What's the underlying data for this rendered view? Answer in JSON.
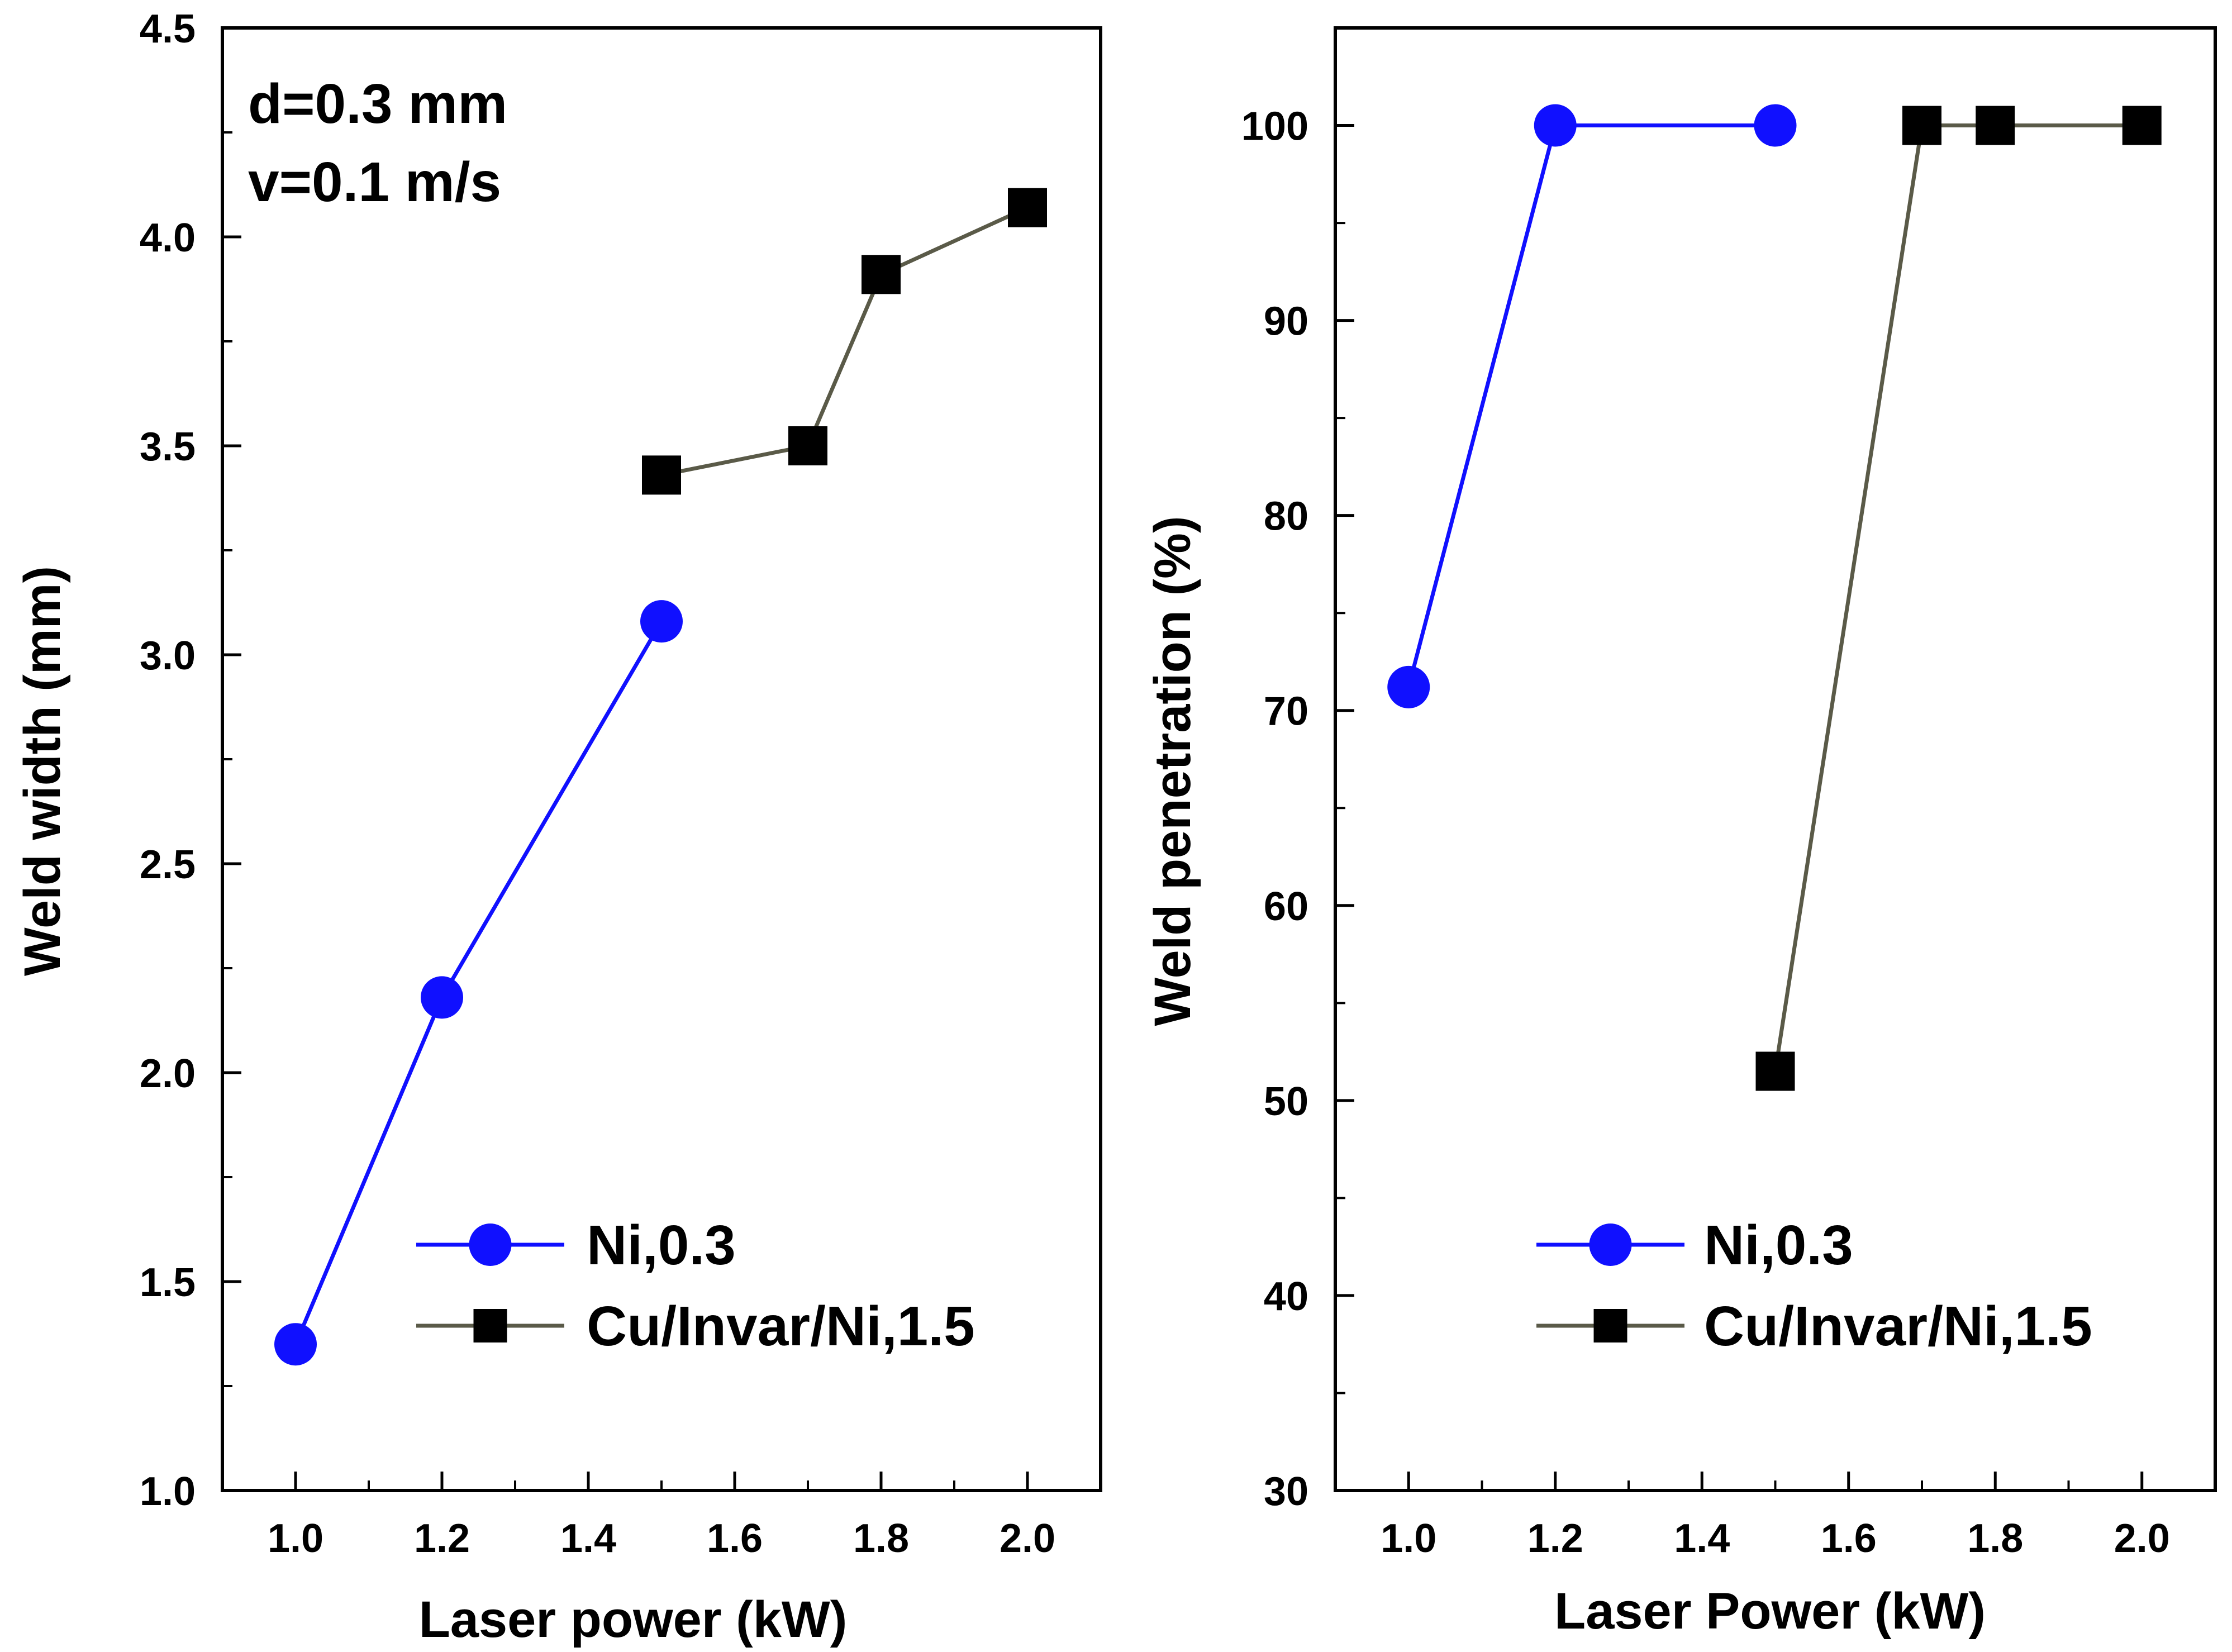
{
  "chart_data": [
    {
      "type": "line",
      "xlabel": "Laser power (kW)",
      "ylabel": "Weld width (mm)",
      "xlim": [
        0.9,
        2.1
      ],
      "ylim": [
        1.0,
        4.5
      ],
      "x_ticks": [
        "1.0",
        "1.2",
        "1.4",
        "1.6",
        "1.8",
        "2.0"
      ],
      "y_ticks": [
        "1.0",
        "1.5",
        "2.0",
        "2.5",
        "3.0",
        "3.5",
        "4.0",
        "4.5"
      ],
      "annotations": [
        "d=0.3 mm",
        "v=0.1 m/s"
      ],
      "legend_position": "bottom-right",
      "grid": false,
      "series": [
        {
          "name": "Ni,0.3",
          "color": "#1010ff",
          "marker": "circle",
          "x": [
            1.0,
            1.2,
            1.5
          ],
          "y": [
            1.35,
            2.18,
            3.08
          ]
        },
        {
          "name": "Cu/Invar/Ni,1.5",
          "color": "#5a5a48",
          "marker": "square",
          "x": [
            1.5,
            1.7,
            1.8,
            2.0
          ],
          "y": [
            3.43,
            3.5,
            3.91,
            4.07
          ]
        }
      ]
    },
    {
      "type": "line",
      "xlabel": "Laser Power (kW)",
      "ylabel": "Weld penetration (%)",
      "xlim": [
        0.9,
        2.1
      ],
      "ylim": [
        30,
        105
      ],
      "x_ticks": [
        "1.0",
        "1.2",
        "1.4",
        "1.6",
        "1.8",
        "2.0"
      ],
      "y_ticks": [
        "30",
        "40",
        "50",
        "60",
        "70",
        "80",
        "90",
        "100"
      ],
      "annotations": [],
      "legend_position": "bottom-right",
      "grid": false,
      "series": [
        {
          "name": "Ni,0.3",
          "color": "#1010ff",
          "marker": "circle",
          "x": [
            1.0,
            1.2,
            1.5
          ],
          "y": [
            71.2,
            100,
            100
          ]
        },
        {
          "name": "Cu/Invar/Ni,1.5",
          "color": "#5a5a48",
          "marker": "square",
          "x": [
            1.5,
            1.7,
            1.8,
            2.0
          ],
          "y": [
            51.5,
            100,
            100,
            100
          ]
        }
      ]
    }
  ]
}
